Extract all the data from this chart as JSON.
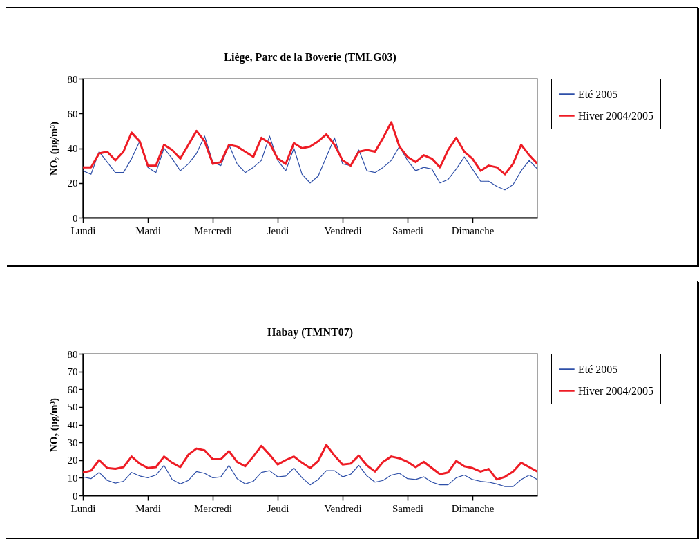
{
  "chart_data": [
    {
      "type": "line",
      "title": "Liège, Parc de la Boverie (TMLG03)",
      "ylabel": "NO₂ (µg/m³)",
      "categories": [
        "Lundi",
        null,
        null,
        null,
        null,
        null,
        null,
        null,
        "Mardi",
        null,
        null,
        null,
        null,
        null,
        null,
        null,
        "Mercredi",
        null,
        null,
        null,
        null,
        null,
        null,
        null,
        "Jeudi",
        null,
        null,
        null,
        null,
        null,
        null,
        null,
        "Vendredi",
        null,
        null,
        null,
        null,
        null,
        null,
        null,
        "Samedi",
        null,
        null,
        null,
        null,
        null,
        null,
        null,
        "Dimanche",
        null,
        null,
        null,
        null,
        null,
        null,
        null,
        null
      ],
      "ylim": [
        0,
        80
      ],
      "yticks": [
        0,
        20,
        40,
        60,
        80
      ],
      "legend": "right",
      "series": [
        {
          "name": "Eté 2005",
          "color": "#2e4fa8",
          "values": [
            27,
            25,
            38,
            32,
            26,
            26,
            34,
            44,
            29,
            26,
            40,
            34,
            27,
            31,
            37,
            47,
            32,
            30,
            42,
            31,
            26,
            29,
            33,
            47,
            33,
            27,
            40,
            25,
            20,
            24,
            35,
            46,
            31,
            30,
            39,
            27,
            26,
            29,
            33,
            41,
            33,
            27,
            29,
            28,
            20,
            22,
            28,
            35,
            28,
            21,
            21,
            18,
            16,
            19,
            27,
            33,
            28
          ]
        },
        {
          "name": "Hiver 2004/2005",
          "color": "#ee1c25",
          "values": [
            29,
            29,
            37,
            38,
            33,
            38,
            49,
            44,
            30,
            30,
            42,
            39,
            34,
            42,
            50,
            44,
            31,
            32,
            42,
            41,
            38,
            35,
            46,
            43,
            34,
            31,
            43,
            40,
            41,
            44,
            48,
            42,
            33,
            30,
            38,
            39,
            38,
            46,
            55,
            41,
            35,
            32,
            36,
            34,
            29,
            39,
            46,
            38,
            34,
            27,
            30,
            29,
            25,
            31,
            42,
            36,
            31
          ]
        }
      ]
    },
    {
      "type": "line",
      "title": "Habay (TMNT07)",
      "ylabel": "NO₂ (µg/m³)",
      "categories": [
        "Lundi",
        null,
        null,
        null,
        null,
        null,
        null,
        null,
        "Mardi",
        null,
        null,
        null,
        null,
        null,
        null,
        null,
        "Mercredi",
        null,
        null,
        null,
        null,
        null,
        null,
        null,
        "Jeudi",
        null,
        null,
        null,
        null,
        null,
        null,
        null,
        "Vendredi",
        null,
        null,
        null,
        null,
        null,
        null,
        null,
        "Samedi",
        null,
        null,
        null,
        null,
        null,
        null,
        null,
        "Dimanche",
        null,
        null,
        null,
        null,
        null,
        null,
        null,
        null
      ],
      "ylim": [
        0,
        80
      ],
      "yticks": [
        0,
        10,
        20,
        30,
        40,
        50,
        60,
        70,
        80
      ],
      "legend": "right",
      "series": [
        {
          "name": "Eté 2005",
          "color": "#2e4fa8",
          "values": [
            10.5,
            9.5,
            13,
            8.5,
            7,
            8,
            13,
            11,
            10,
            11.5,
            17,
            9,
            6.5,
            8.5,
            13.5,
            12.5,
            10,
            10.5,
            17,
            9.5,
            6.5,
            8,
            13,
            14,
            10.5,
            11,
            15.5,
            10,
            6,
            9,
            14,
            14,
            10.5,
            12,
            17,
            11,
            7.5,
            8.5,
            11.5,
            12.5,
            9.5,
            9,
            10.5,
            7.5,
            6,
            6,
            10,
            11.5,
            9,
            8,
            7.5,
            6.5,
            5,
            5,
            9,
            11.5,
            9
          ]
        },
        {
          "name": "Hiver 2004/2005",
          "color": "#ee1c25",
          "values": [
            13,
            14,
            20,
            15.5,
            15,
            16,
            22,
            18,
            15.5,
            16,
            22,
            18.5,
            16,
            23,
            26.5,
            25.5,
            20.5,
            20.5,
            25,
            19,
            16.5,
            22,
            28,
            23,
            17.5,
            20,
            22,
            18.5,
            15.5,
            19.5,
            28.5,
            22.5,
            17.5,
            18,
            22.5,
            17,
            13.5,
            19,
            22,
            21,
            19,
            16,
            19,
            15.5,
            12,
            13,
            19.5,
            16.5,
            15.5,
            13.5,
            15,
            9,
            10.5,
            13.5,
            18.5,
            16,
            13.5
          ]
        }
      ]
    }
  ]
}
